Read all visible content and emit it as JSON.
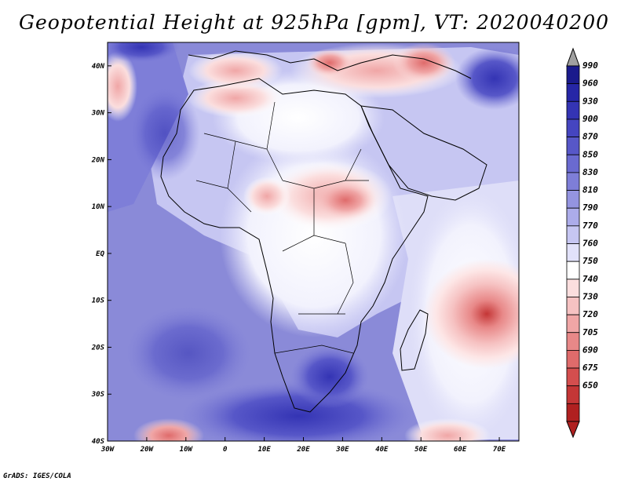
{
  "title": "Geopotential Height at 925hPa [gpm], VT: 2020040200",
  "footer": "GrADS: IGES/COLA",
  "map": {
    "type": "filled-contour-map",
    "variable": "Geopotential Height",
    "level": "925hPa",
    "units": "gpm",
    "valid_time": "2020040200",
    "lon_range": [
      -30,
      75
    ],
    "lat_range": [
      -40,
      45
    ],
    "lon_ticks": [
      {
        "value": -30,
        "label": "30W"
      },
      {
        "value": -20,
        "label": "20W"
      },
      {
        "value": -10,
        "label": "10W"
      },
      {
        "value": 0,
        "label": "0"
      },
      {
        "value": 10,
        "label": "10E"
      },
      {
        "value": 20,
        "label": "20E"
      },
      {
        "value": 30,
        "label": "30E"
      },
      {
        "value": 40,
        "label": "40E"
      },
      {
        "value": 50,
        "label": "50E"
      },
      {
        "value": 60,
        "label": "60E"
      },
      {
        "value": 70,
        "label": "70E"
      }
    ],
    "lat_ticks": [
      {
        "value": 40,
        "label": "40N"
      },
      {
        "value": 30,
        "label": "30N"
      },
      {
        "value": 20,
        "label": "20N"
      },
      {
        "value": 10,
        "label": "10N"
      },
      {
        "value": 0,
        "label": "EQ"
      },
      {
        "value": -10,
        "label": "10S"
      },
      {
        "value": -20,
        "label": "20S"
      },
      {
        "value": -30,
        "label": "30S"
      },
      {
        "value": -40,
        "label": "40S"
      }
    ]
  },
  "colorbar": {
    "labels": [
      "990",
      "960",
      "930",
      "900",
      "870",
      "850",
      "830",
      "810",
      "790",
      "770",
      "760",
      "750",
      "740",
      "730",
      "720",
      "705",
      "690",
      "675",
      "650"
    ],
    "colors": [
      "#1a1a8c",
      "#2626a6",
      "#3434b4",
      "#4545c0",
      "#5757c8",
      "#6a6ad0",
      "#7e7ed8",
      "#9494e0",
      "#acacea",
      "#c6c6f2",
      "#e2e2fa",
      "#ffffff",
      "#fbdede",
      "#f6c2c2",
      "#f0a6a6",
      "#e88888",
      "#df6b6b",
      "#d44e4e",
      "#c43636",
      "#b02020"
    ]
  },
  "colors": {
    "background": "#ffffff",
    "ocean_base": "#7e7ed8",
    "coast": "#000000"
  }
}
